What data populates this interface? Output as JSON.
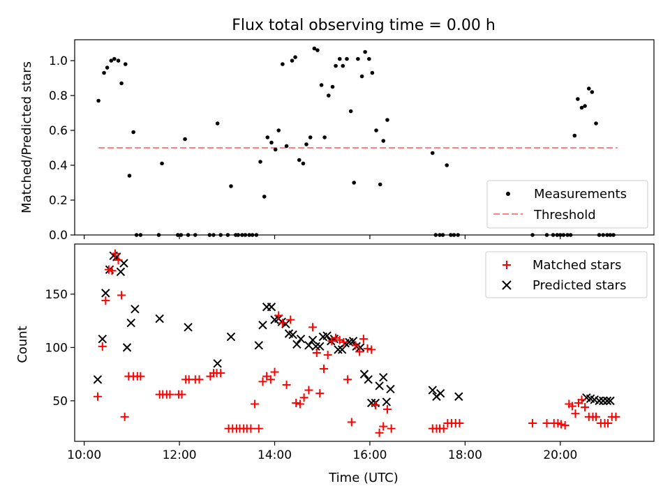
{
  "title": "Flux total observing time = 0.00 h",
  "colors": {
    "measurement": "#000000",
    "threshold": "#ff8080",
    "matched": "#ff0000",
    "predicted": "#000000"
  },
  "chart_data": [
    {
      "type": "scatter",
      "panel": "top",
      "title": "Flux total observing time = 0.00 h",
      "xlabel": "",
      "ylabel": "Matched/Predicted stars",
      "xlim": [
        "09:48",
        "21:58"
      ],
      "ylim": [
        0,
        1.12
      ],
      "yticks": [
        0.0,
        0.2,
        0.4,
        0.6,
        0.8,
        1.0
      ],
      "ytick_labels": [
        "0.0",
        "0.2",
        "0.4",
        "0.6",
        "0.8",
        "1.0"
      ],
      "xticks": [
        "10:00",
        "12:00",
        "14:00",
        "16:00",
        "18:00",
        "20:00"
      ],
      "legend_position": "lower-right",
      "threshold": {
        "name": "Threshold",
        "y": 0.5,
        "x_start": "10:18",
        "x_end": "21:12",
        "style": "dashed"
      },
      "series": [
        {
          "name": "Measurements",
          "x": [
            "10:18",
            "10:25",
            "10:29",
            "10:34",
            "10:38",
            "10:43",
            "10:47",
            "10:52",
            "10:57",
            "11:02",
            "11:06",
            "11:11",
            "11:34",
            "11:38",
            "11:58",
            "12:02",
            "12:07",
            "12:11",
            "12:20",
            "12:38",
            "12:43",
            "12:48",
            "12:52",
            "13:01",
            "13:05",
            "13:11",
            "13:14",
            "13:19",
            "13:23",
            "13:28",
            "13:32",
            "13:37",
            "13:42",
            "13:47",
            "13:51",
            "13:56",
            "14:01",
            "14:05",
            "14:10",
            "14:15",
            "14:22",
            "14:26",
            "14:31",
            "14:36",
            "14:40",
            "14:45",
            "14:50",
            "14:54",
            "14:59",
            "15:03",
            "15:08",
            "15:13",
            "15:17",
            "15:22",
            "15:26",
            "15:31",
            "15:36",
            "15:40",
            "15:45",
            "15:50",
            "15:54",
            "15:59",
            "16:03",
            "16:08",
            "16:13",
            "16:17",
            "16:22",
            "17:19",
            "17:23",
            "17:28",
            "17:32",
            "17:37",
            "17:42",
            "17:46",
            "17:51",
            "19:25",
            "19:43",
            "19:51",
            "19:56",
            "20:00",
            "20:04",
            "20:09",
            "20:13",
            "20:18",
            "20:22",
            "20:27",
            "20:31",
            "20:36",
            "20:40",
            "20:45",
            "20:49",
            "20:54",
            "20:59",
            "21:03",
            "21:07"
          ],
          "y": [
            0.77,
            0.93,
            0.96,
            1.0,
            1.01,
            1.0,
            0.87,
            0.98,
            0.34,
            0.59,
            0.0,
            0.0,
            0.0,
            0.41,
            0.0,
            0.0,
            0.55,
            0.0,
            0.0,
            0.0,
            0.0,
            0.64,
            0.0,
            0.0,
            0.28,
            0.0,
            0.0,
            0.0,
            0.0,
            0.0,
            0.0,
            0.0,
            0.42,
            0.22,
            0.56,
            0.53,
            0.49,
            0.6,
            0.98,
            0.51,
            1.0,
            1.02,
            0.43,
            0.41,
            0.52,
            0.56,
            1.07,
            1.06,
            0.86,
            0.56,
            0.8,
            0.85,
            0.97,
            1.01,
            0.97,
            1.01,
            0.71,
            0.3,
            1.01,
            0.91,
            1.05,
            1.01,
            0.93,
            0.6,
            0.29,
            0.54,
            0.66,
            0.47,
            0.0,
            0.0,
            0.0,
            0.4,
            0.0,
            0.0,
            0.0,
            0.0,
            0.0,
            0.0,
            0.0,
            0.0,
            0.0,
            0.0,
            0.0,
            0.57,
            0.78,
            0.73,
            0.74,
            0.84,
            0.82,
            0.64,
            0.0,
            0.0,
            0.0,
            0.0,
            0.0
          ]
        },
        {
          "name": "Threshold"
        }
      ]
    },
    {
      "type": "scatter",
      "panel": "bottom",
      "title": "",
      "xlabel": "Time (UTC)",
      "ylabel": "Count",
      "xlim": [
        "09:48",
        "21:58"
      ],
      "ylim": [
        12,
        197
      ],
      "yticks": [
        50,
        100,
        150
      ],
      "ytick_labels": [
        "50",
        "100",
        "150"
      ],
      "xticks": [
        "10:00",
        "12:00",
        "14:00",
        "16:00",
        "18:00",
        "20:00"
      ],
      "xtick_labels": [
        "10:00",
        "12:00",
        "14:00",
        "16:00",
        "18:00",
        "20:00"
      ],
      "legend_position": "upper-right",
      "series": [
        {
          "name": "Matched stars",
          "marker": "plus",
          "x": [
            "10:17",
            "10:23",
            "10:27",
            "10:31",
            "10:35",
            "10:39",
            "10:43",
            "10:47",
            "10:51",
            "10:56",
            "11:02",
            "11:07",
            "11:11",
            "11:35",
            "11:39",
            "11:44",
            "11:48",
            "11:59",
            "12:03",
            "12:08",
            "12:12",
            "12:20",
            "12:25",
            "12:39",
            "12:43",
            "12:47",
            "12:52",
            "13:02",
            "13:07",
            "13:12",
            "13:16",
            "13:21",
            "13:25",
            "13:30",
            "13:35",
            "13:40",
            "13:45",
            "13:50",
            "13:55",
            "14:00",
            "14:05",
            "14:10",
            "14:15",
            "14:20",
            "14:27",
            "14:32",
            "14:37",
            "14:43",
            "14:48",
            "14:53",
            "14:57",
            "15:02",
            "15:07",
            "15:12",
            "15:17",
            "15:22",
            "15:27",
            "15:32",
            "15:37",
            "15:42",
            "15:47",
            "15:52",
            "15:57",
            "16:02",
            "16:07",
            "16:12",
            "16:17",
            "16:22",
            "16:27",
            "17:19",
            "17:24",
            "17:28",
            "17:33",
            "17:38",
            "17:43",
            "17:48",
            "17:53",
            "19:25",
            "19:43",
            "19:52",
            "19:57",
            "20:01",
            "20:06",
            "20:11",
            "20:15",
            "20:19",
            "20:23",
            "20:27",
            "20:31",
            "20:36",
            "20:41",
            "20:45",
            "20:51",
            "20:56",
            "21:00",
            "21:05",
            "21:10"
          ],
          "y": [
            54,
            101,
            144,
            173,
            172,
            188,
            182,
            149,
            35,
            73,
            73,
            73,
            73,
            56,
            56,
            56,
            56,
            56,
            56,
            70,
            70,
            70,
            70,
            73,
            76,
            76,
            76,
            24,
            24,
            24,
            24,
            24,
            24,
            24,
            47,
            24,
            68,
            73,
            70,
            77,
            130,
            123,
            65,
            126,
            48,
            47,
            53,
            60,
            119,
            95,
            57,
            80,
            93,
            106,
            109,
            107,
            105,
            70,
            30,
            102,
            96,
            108,
            99,
            98,
            46,
            20,
            26,
            42,
            24,
            24,
            24,
            24,
            24,
            29,
            29,
            29,
            29,
            29,
            29,
            29,
            29,
            28,
            27,
            47,
            45,
            38,
            48,
            51,
            44,
            35,
            35,
            35,
            29,
            29,
            29,
            35,
            35
          ]
        },
        {
          "name": "Predicted stars",
          "marker": "x",
          "x": [
            "10:17",
            "10:23",
            "10:27",
            "10:32",
            "10:37",
            "10:41",
            "10:46",
            "10:50",
            "10:54",
            "10:59",
            "11:04",
            "11:35",
            "12:11",
            "12:48",
            "13:05",
            "13:40",
            "13:45",
            "13:50",
            "13:56",
            "14:00",
            "14:05",
            "14:09",
            "14:14",
            "14:18",
            "14:23",
            "14:28",
            "14:33",
            "14:43",
            "14:48",
            "14:52",
            "14:57",
            "15:01",
            "15:06",
            "15:11",
            "15:15",
            "15:20",
            "15:25",
            "15:29",
            "15:34",
            "15:39",
            "15:43",
            "15:48",
            "15:53",
            "15:58",
            "16:02",
            "16:07",
            "16:12",
            "16:17",
            "16:21",
            "16:26",
            "17:19",
            "17:24",
            "17:29",
            "17:52",
            "20:33",
            "20:38",
            "20:43",
            "20:49",
            "20:54",
            "20:59",
            "21:03"
          ],
          "y": [
            70,
            108,
            151,
            173,
            186,
            185,
            171,
            179,
            100,
            123,
            136,
            127,
            119,
            85,
            110,
            102,
            121,
            138,
            138,
            126,
            127,
            124,
            122,
            113,
            112,
            103,
            108,
            102,
            107,
            101,
            101,
            110,
            111,
            106,
            108,
            98,
            98,
            104,
            105,
            106,
            101,
            100,
            75,
            70,
            48,
            48,
            64,
            72,
            49,
            61,
            60,
            54,
            57,
            54,
            53,
            52,
            51,
            50,
            50,
            50,
            50
          ]
        }
      ]
    }
  ]
}
